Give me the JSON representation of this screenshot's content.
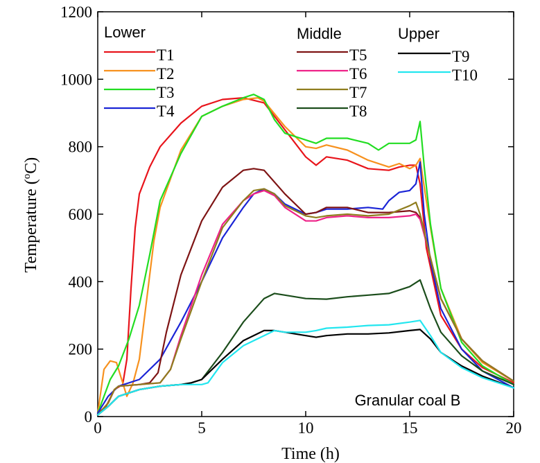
{
  "chart_data": {
    "type": "line",
    "xlabel": "Time (h)",
    "ylabel_main": "Temperature (",
    "ylabel_sup": "o",
    "ylabel_end": "C)",
    "xlim": [
      0,
      20
    ],
    "ylim": [
      0,
      1200
    ],
    "x_ticks": [
      "0",
      "5",
      "10",
      "15",
      "20"
    ],
    "y_ticks": [
      "0",
      "200",
      "400",
      "600",
      "800",
      "1000",
      "1200"
    ],
    "annotation": "Granular coal B",
    "groups": [
      {
        "title": "Lower",
        "series_names": [
          "T1",
          "T2",
          "T3",
          "T4"
        ]
      },
      {
        "title": "Middle",
        "series_names": [
          "T5",
          "T6",
          "T7",
          "T8"
        ]
      },
      {
        "title": "Upper",
        "series_names": [
          "T9",
          "T10"
        ]
      }
    ],
    "series": [
      {
        "name": "T1",
        "color": "#e8141b",
        "points": [
          [
            0,
            10
          ],
          [
            0.4,
            30
          ],
          [
            0.8,
            80
          ],
          [
            1.2,
            95
          ],
          [
            1.4,
            170
          ],
          [
            1.6,
            380
          ],
          [
            1.8,
            560
          ],
          [
            2,
            660
          ],
          [
            2.5,
            740
          ],
          [
            3,
            800
          ],
          [
            4,
            870
          ],
          [
            5,
            920
          ],
          [
            6,
            940
          ],
          [
            7,
            945
          ],
          [
            8,
            930
          ],
          [
            9,
            850
          ],
          [
            10,
            770
          ],
          [
            10.5,
            745
          ],
          [
            11,
            770
          ],
          [
            12,
            760
          ],
          [
            13,
            735
          ],
          [
            14,
            730
          ],
          [
            14.5,
            740
          ],
          [
            15,
            745
          ],
          [
            15.3,
            745
          ],
          [
            15.5,
            690
          ],
          [
            15.8,
            500
          ],
          [
            16.5,
            300
          ],
          [
            17.5,
            200
          ],
          [
            18.5,
            145
          ],
          [
            20,
            100
          ]
        ]
      },
      {
        "name": "T2",
        "color": "#f7911e",
        "points": [
          [
            0,
            10
          ],
          [
            0.3,
            140
          ],
          [
            0.6,
            165
          ],
          [
            0.9,
            160
          ],
          [
            1.1,
            120
          ],
          [
            1.4,
            60
          ],
          [
            1.7,
            100
          ],
          [
            2,
            170
          ],
          [
            2.3,
            320
          ],
          [
            2.7,
            520
          ],
          [
            3,
            620
          ],
          [
            4,
            790
          ],
          [
            5,
            890
          ],
          [
            6,
            920
          ],
          [
            7,
            940
          ],
          [
            7.7,
            945
          ],
          [
            8,
            935
          ],
          [
            9,
            860
          ],
          [
            10,
            800
          ],
          [
            10.5,
            795
          ],
          [
            11,
            805
          ],
          [
            12,
            790
          ],
          [
            13,
            760
          ],
          [
            14,
            740
          ],
          [
            14.5,
            750
          ],
          [
            15,
            735
          ],
          [
            15.3,
            745
          ],
          [
            15.5,
            765
          ],
          [
            15.7,
            680
          ],
          [
            16,
            560
          ],
          [
            16.5,
            380
          ],
          [
            17.5,
            230
          ],
          [
            18.5,
            160
          ],
          [
            20,
            105
          ]
        ]
      },
      {
        "name": "T3",
        "color": "#22dd22",
        "points": [
          [
            0,
            10
          ],
          [
            0.3,
            60
          ],
          [
            0.6,
            110
          ],
          [
            1,
            150
          ],
          [
            1.5,
            230
          ],
          [
            2,
            330
          ],
          [
            2.5,
            480
          ],
          [
            3,
            640
          ],
          [
            4,
            780
          ],
          [
            5,
            890
          ],
          [
            6,
            920
          ],
          [
            7,
            945
          ],
          [
            7.5,
            955
          ],
          [
            8,
            940
          ],
          [
            8.5,
            880
          ],
          [
            9,
            840
          ],
          [
            10,
            820
          ],
          [
            10.5,
            810
          ],
          [
            11,
            825
          ],
          [
            12,
            825
          ],
          [
            13,
            810
          ],
          [
            13.5,
            790
          ],
          [
            14,
            810
          ],
          [
            15,
            810
          ],
          [
            15.3,
            820
          ],
          [
            15.5,
            875
          ],
          [
            15.7,
            740
          ],
          [
            16,
            570
          ],
          [
            16.5,
            380
          ],
          [
            17.5,
            220
          ],
          [
            18.5,
            150
          ],
          [
            20,
            95
          ]
        ]
      },
      {
        "name": "T4",
        "color": "#1a24d6",
        "points": [
          [
            0,
            10
          ],
          [
            0.5,
            60
          ],
          [
            1,
            90
          ],
          [
            2,
            110
          ],
          [
            3,
            170
          ],
          [
            4,
            280
          ],
          [
            5,
            400
          ],
          [
            6,
            530
          ],
          [
            7,
            620
          ],
          [
            7.5,
            660
          ],
          [
            8,
            675
          ],
          [
            8.5,
            660
          ],
          [
            9,
            630
          ],
          [
            10,
            600
          ],
          [
            10.5,
            605
          ],
          [
            11,
            615
          ],
          [
            12,
            615
          ],
          [
            13,
            620
          ],
          [
            13.7,
            615
          ],
          [
            14,
            640
          ],
          [
            14.5,
            665
          ],
          [
            15,
            670
          ],
          [
            15.3,
            690
          ],
          [
            15.5,
            755
          ],
          [
            15.7,
            600
          ],
          [
            16,
            460
          ],
          [
            16.5,
            320
          ],
          [
            17.5,
            200
          ],
          [
            18.5,
            135
          ],
          [
            20,
            85
          ]
        ]
      },
      {
        "name": "T5",
        "color": "#7e1414",
        "points": [
          [
            0,
            5
          ],
          [
            0.5,
            40
          ],
          [
            0.8,
            80
          ],
          [
            1,
            90
          ],
          [
            2,
            95
          ],
          [
            2.5,
            100
          ],
          [
            2.9,
            130
          ],
          [
            3.3,
            250
          ],
          [
            4,
            420
          ],
          [
            5,
            580
          ],
          [
            6,
            680
          ],
          [
            7,
            730
          ],
          [
            7.5,
            735
          ],
          [
            8,
            730
          ],
          [
            9,
            660
          ],
          [
            10,
            600
          ],
          [
            10.5,
            605
          ],
          [
            11,
            620
          ],
          [
            12,
            620
          ],
          [
            13,
            605
          ],
          [
            14,
            605
          ],
          [
            15,
            610
          ],
          [
            15.3,
            605
          ],
          [
            15.5,
            590
          ],
          [
            16,
            470
          ],
          [
            16.5,
            350
          ],
          [
            17.5,
            230
          ],
          [
            18.5,
            165
          ],
          [
            20,
            105
          ]
        ]
      },
      {
        "name": "T6",
        "color": "#ee2288",
        "points": [
          [
            0,
            5
          ],
          [
            0.5,
            40
          ],
          [
            0.8,
            80
          ],
          [
            1,
            90
          ],
          [
            2,
            95
          ],
          [
            3,
            100
          ],
          [
            3.5,
            140
          ],
          [
            4,
            240
          ],
          [
            5,
            420
          ],
          [
            6,
            570
          ],
          [
            7,
            640
          ],
          [
            7.5,
            660
          ],
          [
            8,
            670
          ],
          [
            8.5,
            655
          ],
          [
            9,
            620
          ],
          [
            10,
            580
          ],
          [
            10.5,
            580
          ],
          [
            11,
            590
          ],
          [
            12,
            595
          ],
          [
            13,
            590
          ],
          [
            14,
            590
          ],
          [
            15,
            595
          ],
          [
            15.3,
            600
          ],
          [
            15.5,
            585
          ],
          [
            16,
            470
          ],
          [
            16.5,
            350
          ],
          [
            17.5,
            230
          ],
          [
            18.5,
            165
          ],
          [
            20,
            105
          ]
        ]
      },
      {
        "name": "T7",
        "color": "#8f7d1e",
        "points": [
          [
            0,
            5
          ],
          [
            0.5,
            40
          ],
          [
            0.8,
            80
          ],
          [
            1,
            90
          ],
          [
            2,
            95
          ],
          [
            3,
            100
          ],
          [
            3.5,
            140
          ],
          [
            4,
            230
          ],
          [
            5,
            400
          ],
          [
            6,
            560
          ],
          [
            7,
            640
          ],
          [
            7.5,
            670
          ],
          [
            8,
            675
          ],
          [
            8.5,
            660
          ],
          [
            9,
            625
          ],
          [
            10,
            595
          ],
          [
            10.5,
            590
          ],
          [
            11,
            595
          ],
          [
            12,
            600
          ],
          [
            13,
            595
          ],
          [
            14,
            600
          ],
          [
            15,
            625
          ],
          [
            15.3,
            635
          ],
          [
            15.5,
            600
          ],
          [
            16,
            470
          ],
          [
            16.5,
            350
          ],
          [
            17.5,
            230
          ],
          [
            18.5,
            165
          ],
          [
            20,
            105
          ]
        ]
      },
      {
        "name": "T8",
        "color": "#1b4d1b",
        "points": [
          [
            0,
            5
          ],
          [
            0.5,
            30
          ],
          [
            1,
            60
          ],
          [
            2,
            80
          ],
          [
            3,
            90
          ],
          [
            4,
            95
          ],
          [
            4.5,
            100
          ],
          [
            5,
            110
          ],
          [
            6,
            190
          ],
          [
            7,
            280
          ],
          [
            8,
            350
          ],
          [
            8.5,
            365
          ],
          [
            9,
            360
          ],
          [
            10,
            350
          ],
          [
            11,
            348
          ],
          [
            12,
            355
          ],
          [
            13,
            360
          ],
          [
            14,
            365
          ],
          [
            15,
            385
          ],
          [
            15.5,
            405
          ],
          [
            16,
            320
          ],
          [
            16.5,
            250
          ],
          [
            17.5,
            180
          ],
          [
            18.5,
            135
          ],
          [
            20,
            95
          ]
        ]
      },
      {
        "name": "T9",
        "color": "#000000",
        "points": [
          [
            0,
            5
          ],
          [
            0.5,
            30
          ],
          [
            1,
            60
          ],
          [
            2,
            80
          ],
          [
            3,
            90
          ],
          [
            4,
            95
          ],
          [
            4.5,
            100
          ],
          [
            5,
            110
          ],
          [
            6,
            170
          ],
          [
            7,
            225
          ],
          [
            8,
            255
          ],
          [
            8.5,
            255
          ],
          [
            9,
            250
          ],
          [
            10,
            240
          ],
          [
            10.5,
            235
          ],
          [
            11,
            240
          ],
          [
            12,
            245
          ],
          [
            13,
            245
          ],
          [
            14,
            248
          ],
          [
            15,
            255
          ],
          [
            15.5,
            258
          ],
          [
            16,
            230
          ],
          [
            16.5,
            190
          ],
          [
            17.5,
            150
          ],
          [
            18.5,
            120
          ],
          [
            20,
            85
          ]
        ]
      },
      {
        "name": "T10",
        "color": "#22e6ef",
        "points": [
          [
            0,
            5
          ],
          [
            0.5,
            30
          ],
          [
            1,
            60
          ],
          [
            2,
            80
          ],
          [
            3,
            90
          ],
          [
            4,
            95
          ],
          [
            5,
            95
          ],
          [
            5.3,
            100
          ],
          [
            6,
            160
          ],
          [
            7,
            210
          ],
          [
            8,
            240
          ],
          [
            8.5,
            255
          ],
          [
            9,
            250
          ],
          [
            10,
            250
          ],
          [
            10.5,
            255
          ],
          [
            11,
            262
          ],
          [
            12,
            265
          ],
          [
            13,
            270
          ],
          [
            14,
            272
          ],
          [
            15,
            280
          ],
          [
            15.5,
            285
          ],
          [
            16,
            240
          ],
          [
            16.5,
            190
          ],
          [
            17.5,
            145
          ],
          [
            18.5,
            115
          ],
          [
            20,
            85
          ]
        ]
      }
    ]
  }
}
